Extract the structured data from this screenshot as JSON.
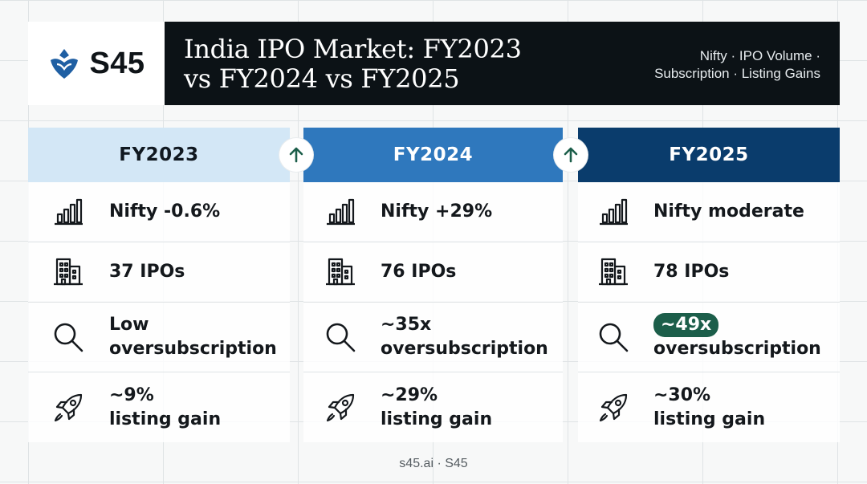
{
  "brand": {
    "name": "S45",
    "icon": "s45-logo-icon",
    "color": "#1f5fa3"
  },
  "header": {
    "title_line1": "India IPO Market: FY2023",
    "title_line2": "vs FY2024 vs FY2025",
    "subtitle_line1": "Nifty · IPO Volume ·",
    "subtitle_line2": "Subscription · Listing Gains"
  },
  "colors": {
    "fy2023_header": "#d3e7f6",
    "fy2024_header": "#2f78bd",
    "fy2025_header": "#0a3c6c",
    "title_bar": "#0c1216",
    "accent_arrow": "#1c5e4a",
    "highlight_pill": "#1c5e4a"
  },
  "arrows": [
    {
      "icon": "arrow-up-icon"
    },
    {
      "icon": "arrow-up-icon"
    }
  ],
  "columns": [
    {
      "header": "FY2023",
      "rows": [
        {
          "icon": "bar-chart-icon",
          "line1": "Nifty -0.6%",
          "line2": ""
        },
        {
          "icon": "building-icon",
          "line1": "37 IPOs",
          "line2": ""
        },
        {
          "icon": "search-icon",
          "line1": "Low",
          "line2": "oversubscription"
        },
        {
          "icon": "rocket-icon",
          "line1": "~9%",
          "line2": "listing gain"
        }
      ]
    },
    {
      "header": "FY2024",
      "rows": [
        {
          "icon": "bar-chart-icon",
          "line1": "Nifty +29%",
          "line2": ""
        },
        {
          "icon": "building-icon",
          "line1": "76 IPOs",
          "line2": ""
        },
        {
          "icon": "search-icon",
          "line1": "~35x",
          "line2": "oversubscription"
        },
        {
          "icon": "rocket-icon",
          "line1": "~29%",
          "line2": "listing gain"
        }
      ]
    },
    {
      "header": "FY2025",
      "rows": [
        {
          "icon": "bar-chart-icon",
          "line1": "Nifty moderate",
          "line2": ""
        },
        {
          "icon": "building-icon",
          "line1": "78 IPOs",
          "line2": ""
        },
        {
          "icon": "search-icon",
          "line1": "~49x",
          "line2": "oversubscription"
        },
        {
          "icon": "rocket-icon",
          "line1": "~30%",
          "line2": "listing gain"
        }
      ]
    }
  ],
  "footer": {
    "text": "s45.ai · S45"
  }
}
